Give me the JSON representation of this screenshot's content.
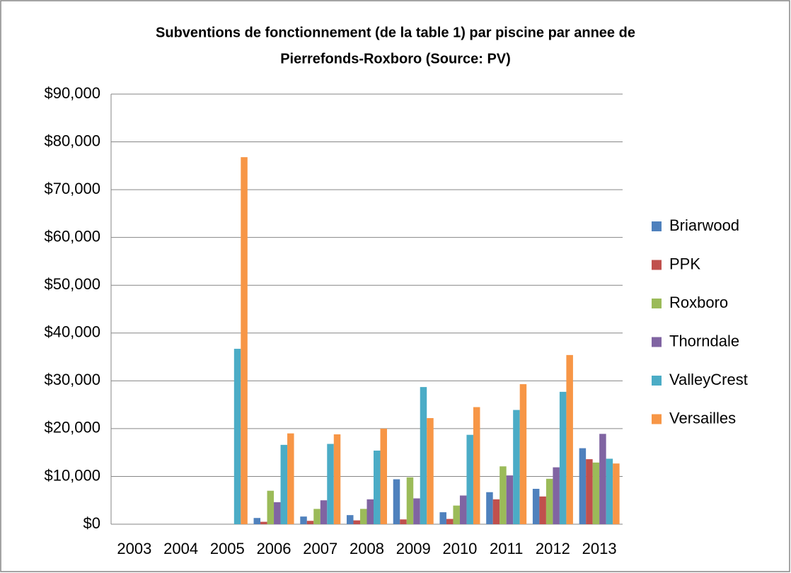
{
  "chart_data": {
    "type": "bar",
    "title": [
      "Subventions de fonctionnement  (de la table 1) par piscine par annee de",
      "Pierrefonds-Roxboro (Source: PV)"
    ],
    "categories": [
      "2003",
      "2004",
      "2005",
      "2006",
      "2007",
      "2008",
      "2009",
      "2010",
      "2011",
      "2012",
      "2013"
    ],
    "series": [
      {
        "name": "Briarwood",
        "color": "#4f81bd",
        "values": [
          0,
          0,
          0,
          1300,
          1600,
          1900,
          9400,
          2500,
          6700,
          7400,
          15900
        ]
      },
      {
        "name": "PPK",
        "color": "#c0504d",
        "values": [
          0,
          0,
          0,
          500,
          700,
          800,
          1000,
          1100,
          5200,
          5800,
          13600
        ]
      },
      {
        "name": "Roxboro",
        "color": "#9bbb59",
        "values": [
          0,
          0,
          0,
          7000,
          3200,
          3200,
          9800,
          3900,
          12100,
          9500,
          12900
        ]
      },
      {
        "name": "Thorndale",
        "color": "#8064a2",
        "values": [
          0,
          0,
          0,
          4600,
          5000,
          5200,
          5400,
          6000,
          10200,
          11900,
          18900
        ]
      },
      {
        "name": "ValleyCrest",
        "color": "#4bacc6",
        "values": [
          0,
          0,
          36700,
          16600,
          16800,
          15400,
          28700,
          18700,
          23900,
          27700,
          13700
        ]
      },
      {
        "name": "Versailles",
        "color": "#f79646",
        "values": [
          0,
          0,
          76800,
          19000,
          18800,
          20000,
          22200,
          24500,
          29300,
          35400,
          12700
        ]
      }
    ],
    "ylim": [
      0,
      90000
    ],
    "yticks": [
      {
        "value": 0,
        "label": "$0"
      },
      {
        "value": 10000,
        "label": "$10,000"
      },
      {
        "value": 20000,
        "label": "$20,000"
      },
      {
        "value": 30000,
        "label": "$30,000"
      },
      {
        "value": 40000,
        "label": "$40,000"
      },
      {
        "value": 50000,
        "label": "$50,000"
      },
      {
        "value": 60000,
        "label": "$60,000"
      },
      {
        "value": 70000,
        "label": "$70,000"
      },
      {
        "value": 80000,
        "label": "$80,000"
      },
      {
        "value": 90000,
        "label": "$90,000"
      }
    ],
    "grid": true,
    "legend": "right"
  }
}
